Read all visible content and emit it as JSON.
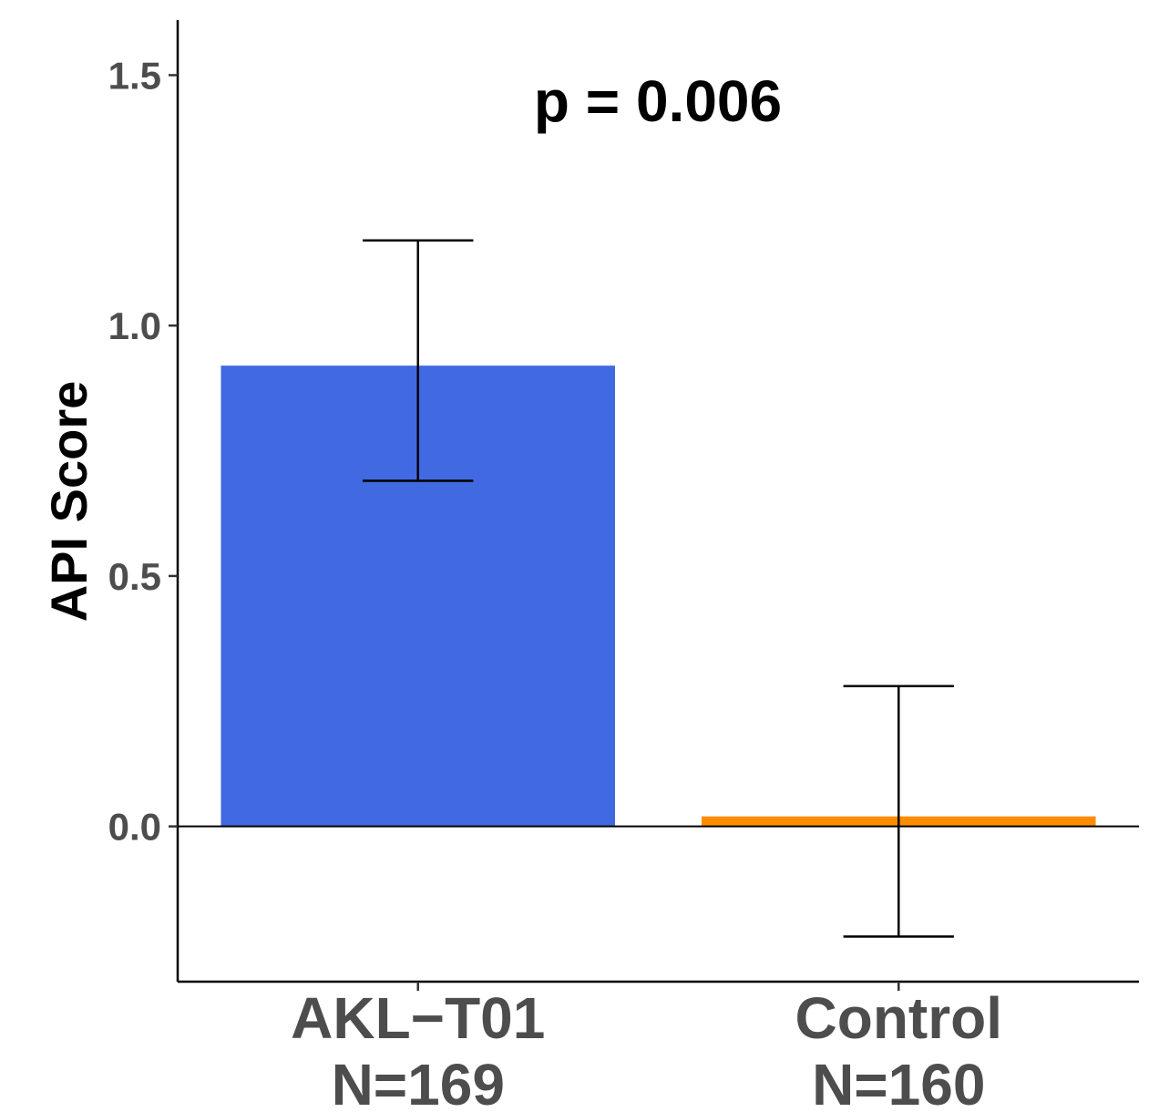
{
  "chart_data": {
    "type": "bar",
    "categories": [
      "AKL−T01",
      "Control"
    ],
    "category_sublabels": [
      "N=169",
      "N=160"
    ],
    "values": [
      0.92,
      0.02
    ],
    "error_low": [
      0.69,
      -0.22
    ],
    "error_high": [
      1.17,
      0.28
    ],
    "colors": [
      "#4169E1",
      "#FF8C00"
    ],
    "ylabel": "API Score",
    "xlabel": "",
    "title": "",
    "annotation": "p = 0.006",
    "ylim": [
      -0.31,
      1.61
    ],
    "yticks": [
      0.0,
      0.5,
      1.0,
      1.5
    ],
    "ytick_labels": [
      "0.0",
      "0.5",
      "1.0",
      "1.5"
    ],
    "grid": false,
    "zero_line": true
  }
}
